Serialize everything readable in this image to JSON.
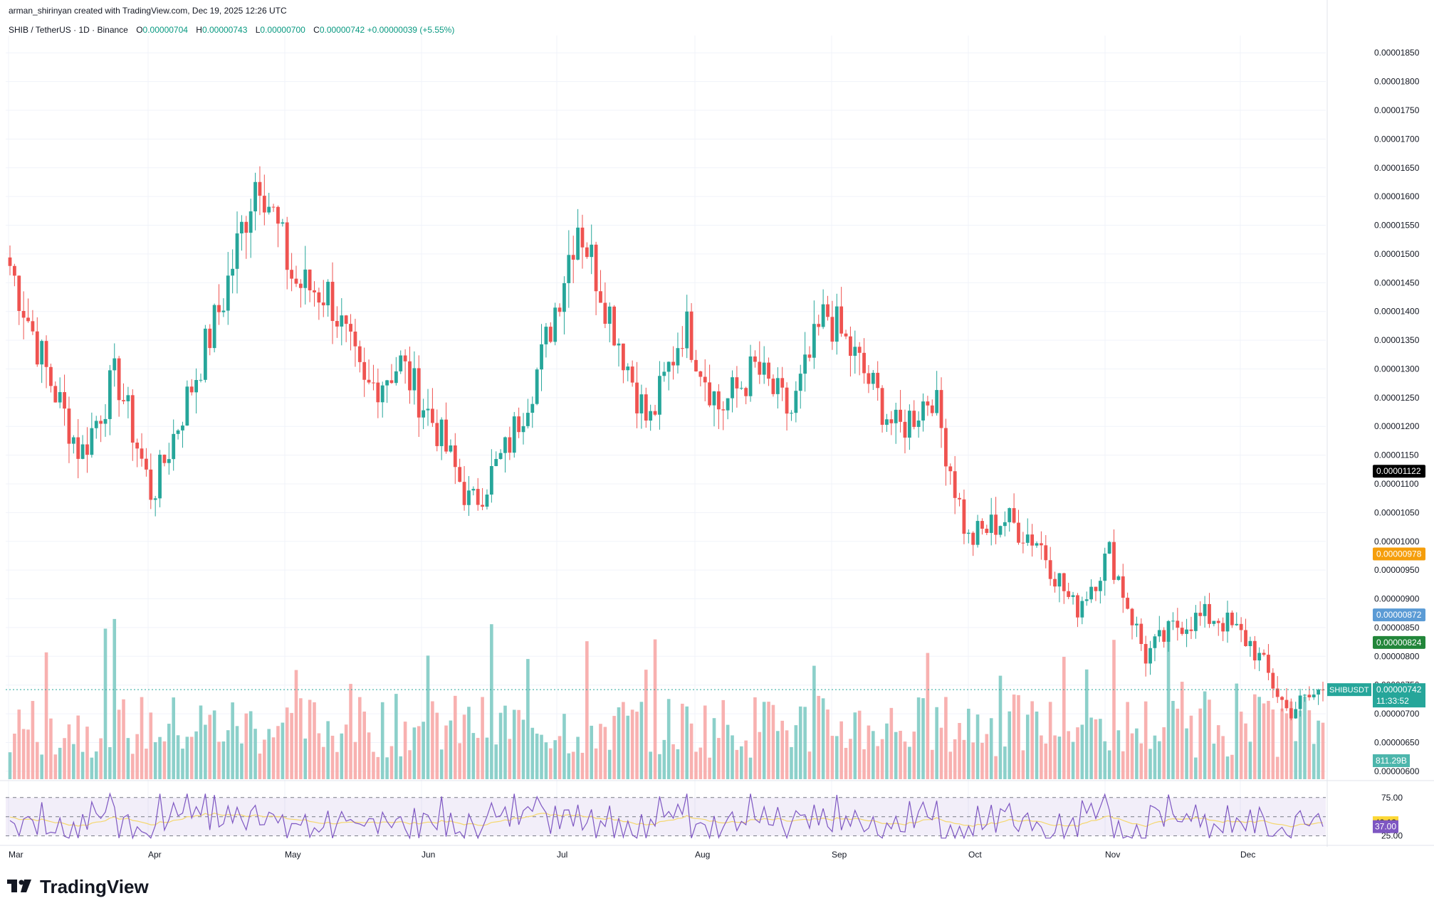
{
  "header": {
    "credit": "arman_shirinyan created with TradingView.com, Dec 19, 2025 12:26 UTC",
    "symbol": "SHIB / TetherUS · 1D · Binance",
    "ohlc": [
      {
        "k": "O",
        "v": "0.00000704"
      },
      {
        "k": "H",
        "v": "0.00000743"
      },
      {
        "k": "L",
        "v": "0.00000700"
      },
      {
        "k": "C",
        "v": "0.00000742"
      }
    ],
    "change": "+0.00000039 (+5.55%)"
  },
  "brand": {
    "name": "TradingView",
    "icon": "tradingview-logo-icon"
  },
  "colors": {
    "up": "#26a69a",
    "down": "#ef5350",
    "ma200": "#000000",
    "ma100": "#f59e0b",
    "ma50": "#5b9bd5",
    "ma20": "#22863a",
    "rsi": "#7e57c2",
    "rsi_ma": "#f5d76e"
  },
  "chart_data": {
    "type": "candlestick",
    "title": "SHIB / TetherUS · 1D · Binance",
    "x_labels": [
      "Mar",
      "Apr",
      "May",
      "Jun",
      "Jul",
      "Aug",
      "Sep",
      "Oct",
      "Nov",
      "Dec"
    ],
    "y_ticks": [
      "0.00001850",
      "0.00001800",
      "0.00001750",
      "0.00001700",
      "0.00001650",
      "0.00001600",
      "0.00001550",
      "0.00001500",
      "0.00001450",
      "0.00001400",
      "0.00001350",
      "0.00001300",
      "0.00001250",
      "0.00001200",
      "0.00001150",
      "0.00001100",
      "0.00001050",
      "0.00001000",
      "0.00000950",
      "0.00000900",
      "0.00000850",
      "0.00000800",
      "0.00000750",
      "0.00000700",
      "0.00000650",
      "0.00000600"
    ],
    "ylim": [
      5.8e-06,
      1.88e-05
    ],
    "close_path": [
      {
        "month": "Mar",
        "close": 1.48e-05
      },
      {
        "month": "Mar",
        "close": 1.3e-05
      },
      {
        "month": "Mar",
        "close": 1.15e-05
      },
      {
        "month": "Apr",
        "close": 1.29e-05
      },
      {
        "month": "Apr",
        "close": 1.08e-05
      },
      {
        "month": "Apr",
        "close": 1.25e-05
      },
      {
        "month": "May",
        "close": 1.42e-05
      },
      {
        "month": "May",
        "close": 1.65e-05
      },
      {
        "month": "May",
        "close": 1.45e-05
      },
      {
        "month": "May",
        "close": 1.43e-05
      },
      {
        "month": "Jun",
        "close": 1.26e-05
      },
      {
        "month": "Jun",
        "close": 1.31e-05
      },
      {
        "month": "Jun",
        "close": 1.2e-05
      },
      {
        "month": "Jun",
        "close": 1.06e-05
      },
      {
        "month": "Jul",
        "close": 1.16e-05
      },
      {
        "month": "Jul",
        "close": 1.32e-05
      },
      {
        "month": "Jul",
        "close": 1.56e-05
      },
      {
        "month": "Jul",
        "close": 1.38e-05
      },
      {
        "month": "Aug",
        "close": 1.2e-05
      },
      {
        "month": "Aug",
        "close": 1.38e-05
      },
      {
        "month": "Aug",
        "close": 1.23e-05
      },
      {
        "month": "Aug",
        "close": 1.3e-05
      },
      {
        "month": "Sep",
        "close": 1.22e-05
      },
      {
        "month": "Sep",
        "close": 1.4e-05
      },
      {
        "month": "Sep",
        "close": 1.3e-05
      },
      {
        "month": "Sep",
        "close": 1.19e-05
      },
      {
        "month": "Oct",
        "close": 1.26e-05
      },
      {
        "month": "Oct",
        "close": 1e-05
      },
      {
        "month": "Oct",
        "close": 1.04e-05
      },
      {
        "month": "Oct",
        "close": 1e-05
      },
      {
        "month": "Nov",
        "close": 8.8e-06
      },
      {
        "month": "Nov",
        "close": 9.8e-06
      },
      {
        "month": "Nov",
        "close": 8e-06
      },
      {
        "month": "Nov",
        "close": 8.6e-06
      },
      {
        "month": "Dec",
        "close": 8.7e-06
      },
      {
        "month": "Dec",
        "close": 8.2e-06
      },
      {
        "month": "Dec",
        "close": 7.04e-06
      },
      {
        "month": "Dec",
        "close": 7.42e-06
      }
    ],
    "moving_averages": [
      {
        "color": "#000000",
        "label": "0.00001122",
        "start": 1.85e-05,
        "end": 1.122e-05
      },
      {
        "color": "#f59e0b",
        "label": "0.00000978",
        "start": 1.86e-05,
        "end": 9.78e-06
      },
      {
        "color": "#5b9bd5",
        "label": "0.00000872",
        "start": 1.78e-05,
        "end": 8.72e-06
      },
      {
        "color": "#22863a",
        "label": "0.00000824",
        "start": 1.6e-05,
        "end": 8.24e-06
      }
    ],
    "last_price": {
      "symbol": "SHIBUSDT",
      "price": "0.00000742",
      "countdown": "11:33:52"
    },
    "volume": {
      "last_label": "811.29B"
    },
    "rsi": {
      "levels": [
        "75.00",
        "25.00"
      ],
      "value": "37.00",
      "ma_value": "42.13"
    }
  }
}
